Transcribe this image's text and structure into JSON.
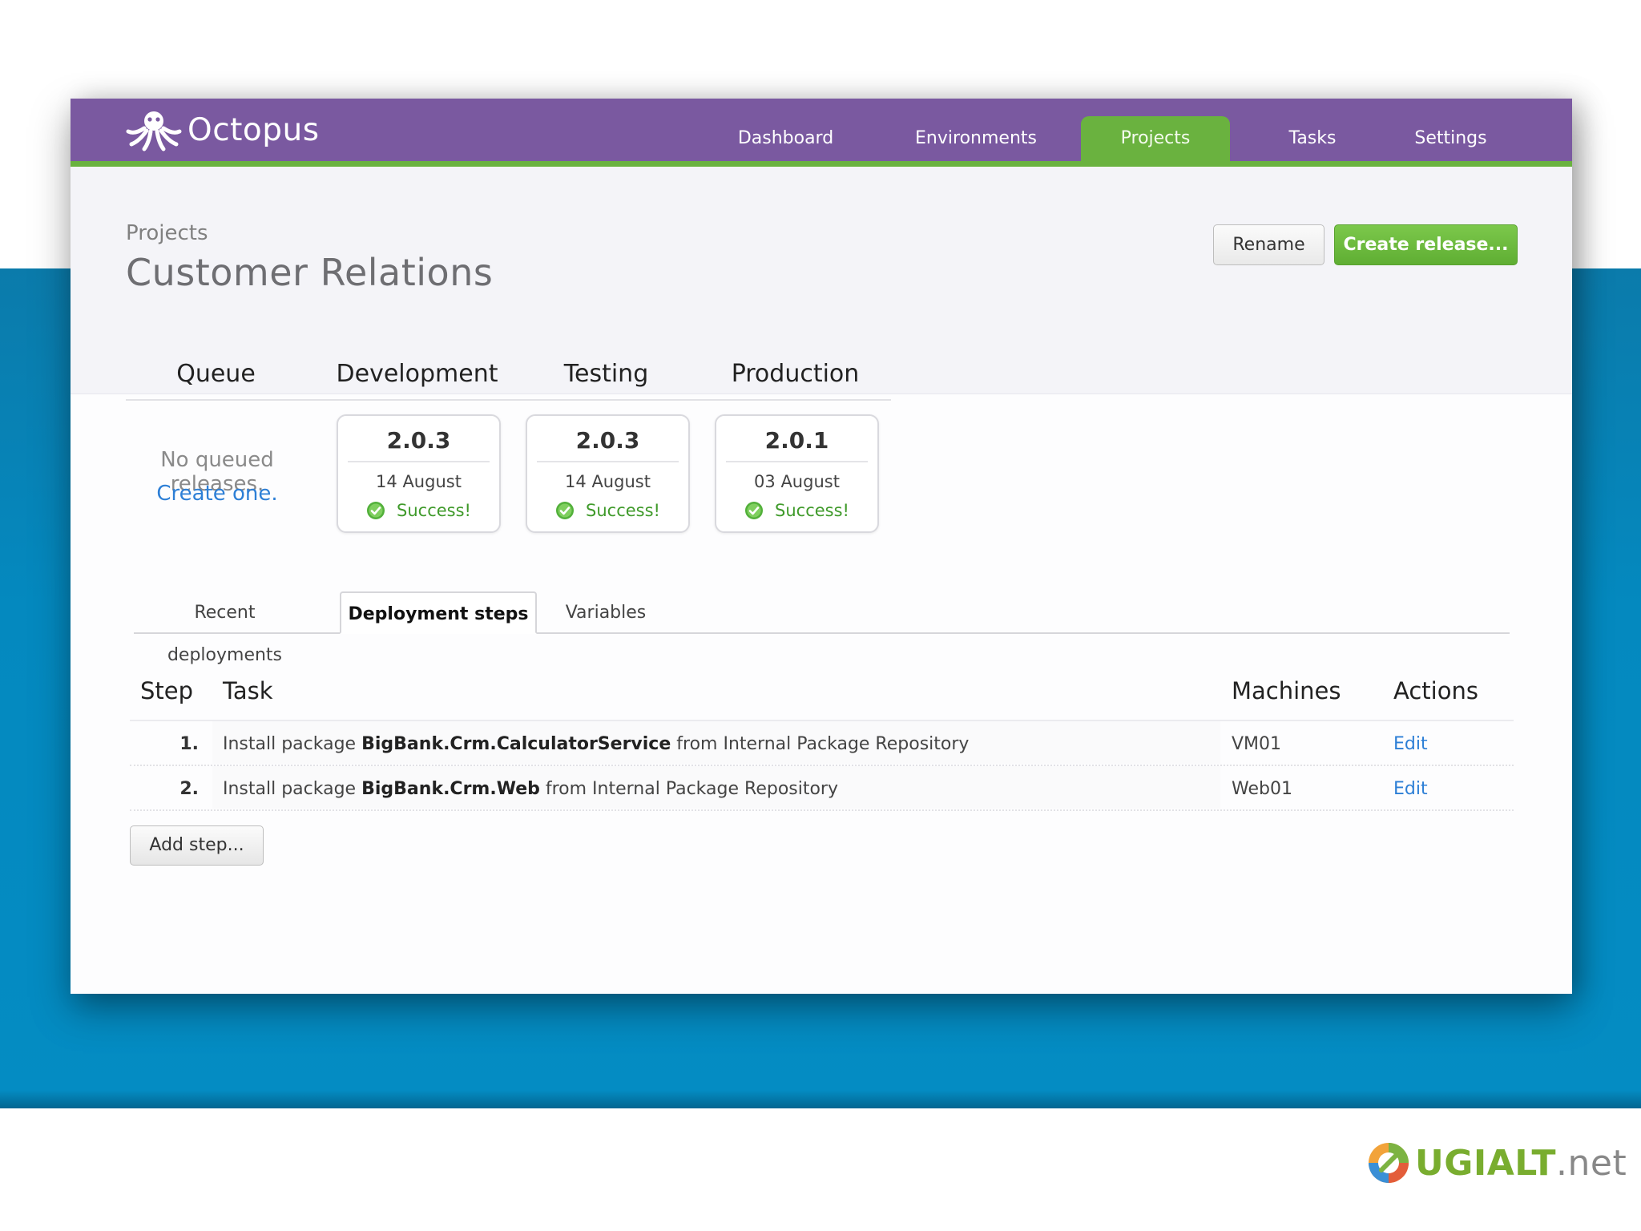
{
  "app": {
    "logo_text": "Octopus",
    "colors": {
      "topbar": "#7a59a0",
      "accent": "#6ab23f",
      "link": "#2d7fd6"
    }
  },
  "nav": {
    "items": [
      {
        "label": "Dashboard"
      },
      {
        "label": "Environments"
      },
      {
        "label": "Projects",
        "active": true
      },
      {
        "label": "Tasks"
      },
      {
        "label": "Settings"
      }
    ]
  },
  "header": {
    "breadcrumb": "Projects",
    "title": "Customer Relations",
    "rename_label": "Rename",
    "create_release_label": "Create release..."
  },
  "environments": {
    "columns": [
      "Queue",
      "Development",
      "Testing",
      "Production"
    ],
    "queue": {
      "empty_text": "No queued releases.",
      "create_link": "Create one."
    },
    "cards": [
      {
        "version": "2.0.3",
        "date": "14 August",
        "status": "Success!"
      },
      {
        "version": "2.0.3",
        "date": "14 August",
        "status": "Success!"
      },
      {
        "version": "2.0.1",
        "date": "03 August",
        "status": "Success!"
      }
    ]
  },
  "tabs": [
    {
      "label": "Recent deployments"
    },
    {
      "label": "Deployment steps",
      "active": true
    },
    {
      "label": "Variables"
    }
  ],
  "steps_table": {
    "headers": {
      "step": "Step",
      "task": "Task",
      "machines": "Machines",
      "actions": "Actions"
    },
    "rows": [
      {
        "num": "1.",
        "prefix": "Install package",
        "package": "BigBank.Crm.CalculatorService",
        "suffix": "from Internal Package Repository",
        "machine": "VM01",
        "action": "Edit"
      },
      {
        "num": "2.",
        "prefix": "Install package",
        "package": "BigBank.Crm.Web",
        "suffix": "from Internal Package Repository",
        "machine": "Web01",
        "action": "Edit"
      }
    ],
    "add_step_label": "Add step..."
  },
  "footer": {
    "brand": "UGIALT",
    "suffix": ".net"
  }
}
